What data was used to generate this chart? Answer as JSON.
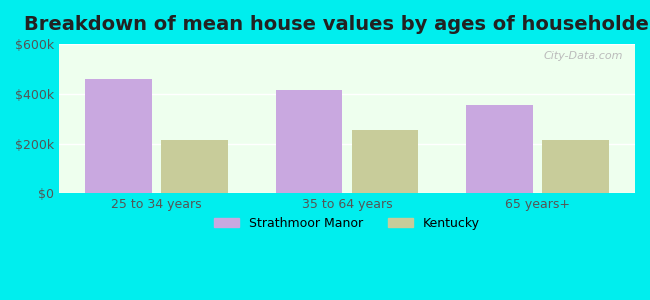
{
  "title": "Breakdown of mean house values by ages of householders",
  "categories": [
    "25 to 34 years",
    "35 to 64 years",
    "65 years+"
  ],
  "strathmoor_values": [
    460000,
    415000,
    355000
  ],
  "kentucky_values": [
    215000,
    255000,
    215000
  ],
  "strathmoor_color": "#c9a8e0",
  "kentucky_color": "#c8cc9a",
  "ylim": [
    0,
    600000
  ],
  "yticks": [
    0,
    200000,
    400000,
    600000
  ],
  "ytick_labels": [
    "$0",
    "$200k",
    "$400k",
    "$600k"
  ],
  "background_color": "#00eeee",
  "plot_bg_color": "#eeffee",
  "title_fontsize": 14,
  "legend_labels": [
    "Strathmoor Manor",
    "Kentucky"
  ],
  "bar_width": 0.35,
  "bar_gap": 0.05
}
